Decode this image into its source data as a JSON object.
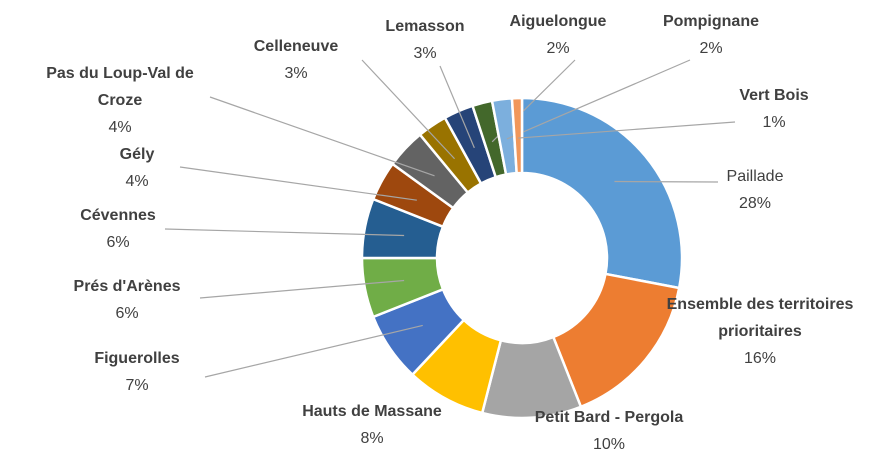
{
  "chart_data": {
    "type": "donut",
    "categories": [
      "Paillade",
      "Ensemble des territoires prioritaires",
      "Petit Bard - Pergola",
      "Hauts de Massane",
      "Figuerolles",
      "Prés d'Arènes",
      "Cévennes",
      "Gély",
      "Pas du Loup-Val de Croze",
      "Celleneuve",
      "Lemasson",
      "Aiguelongue",
      "Pompignane",
      "Vert Bois"
    ],
    "values": [
      28,
      16,
      10,
      8,
      7,
      6,
      6,
      4,
      4,
      3,
      3,
      2,
      2,
      1
    ],
    "value_labels": [
      "28%",
      "16%",
      "10%",
      "8%",
      "7%",
      "6%",
      "6%",
      "4%",
      "4%",
      "3%",
      "3%",
      "2%",
      "2%",
      "1%"
    ],
    "colors": [
      "#5b9bd5",
      "#ed7d31",
      "#a5a5a5",
      "#ffc000",
      "#4472c4",
      "#70ad47",
      "#255e91",
      "#9e480e",
      "#636363",
      "#997300",
      "#264478",
      "#43682b",
      "#7cafdd",
      "#f1975a"
    ]
  }
}
